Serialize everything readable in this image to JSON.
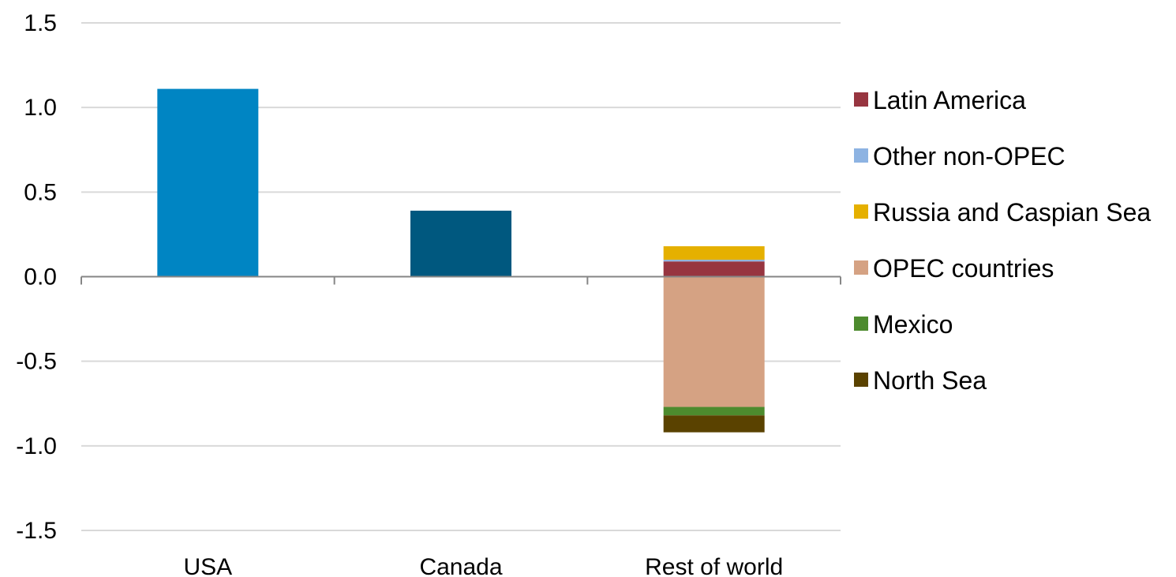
{
  "chart_data": {
    "type": "bar",
    "stacked": true,
    "categories": [
      "USA",
      "Canada",
      "Rest of world"
    ],
    "ylim": [
      -1.5,
      1.5
    ],
    "yticks": [
      1.5,
      1.0,
      0.5,
      0.0,
      -0.5,
      -1.0,
      -1.5
    ],
    "ytick_labels": [
      "1.5",
      "1.0",
      "0.5",
      "0.0",
      "-0.5",
      "-1.0",
      "-1.5"
    ],
    "grid": true,
    "legend_position": "right",
    "single_bars": [
      {
        "category": "USA",
        "value": 1.11,
        "color": "#0085C3"
      },
      {
        "category": "Canada",
        "value": 0.39,
        "color": "#00587F"
      }
    ],
    "series": [
      {
        "name": "Latin America",
        "color": "#973540",
        "values": [
          0,
          0,
          0.09
        ]
      },
      {
        "name": "Other non-OPEC",
        "color": "#8DB3E2",
        "values": [
          0,
          0,
          0.01
        ]
      },
      {
        "name": "Russia and Caspian Sea",
        "color": "#E5B000",
        "values": [
          0,
          0,
          0.08
        ]
      },
      {
        "name": "OPEC countries",
        "color": "#D5A283",
        "values": [
          0,
          0,
          -0.77
        ]
      },
      {
        "name": "Mexico",
        "color": "#4D8B2E",
        "values": [
          0,
          0,
          -0.05
        ]
      },
      {
        "name": "North Sea",
        "color": "#5A4200",
        "values": [
          0,
          0,
          -0.1
        ]
      }
    ]
  }
}
